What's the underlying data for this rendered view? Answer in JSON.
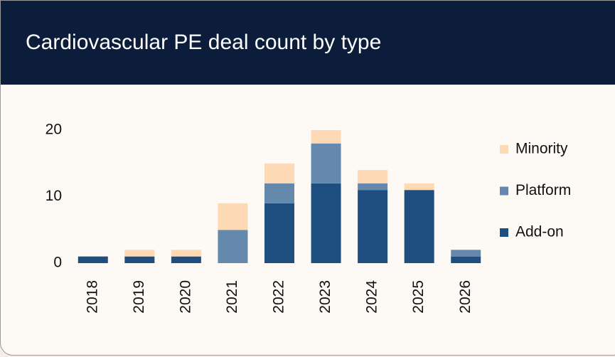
{
  "chart_data": {
    "type": "stacked_bar",
    "title": "Cardiovascular PE deal count by type",
    "categories": [
      "2018",
      "2019",
      "2020",
      "2021",
      "2022",
      "2023",
      "2024",
      "2025",
      "2026"
    ],
    "series": [
      {
        "name": "Add-on",
        "color": "#1f4e80",
        "values": [
          1,
          1,
          1,
          0,
          9,
          12,
          11,
          11,
          1
        ]
      },
      {
        "name": "Platform",
        "color": "#6589ad",
        "values": [
          0,
          0,
          0,
          5,
          3,
          6,
          1,
          0,
          1
        ]
      },
      {
        "name": "Minority",
        "color": "#fdd9b5",
        "values": [
          0,
          1,
          1,
          4,
          3,
          2,
          2,
          1,
          0
        ]
      }
    ],
    "ylim": [
      0,
      20
    ],
    "yticks": [
      0,
      10,
      20
    ],
    "grid": false,
    "legend": "right"
  }
}
